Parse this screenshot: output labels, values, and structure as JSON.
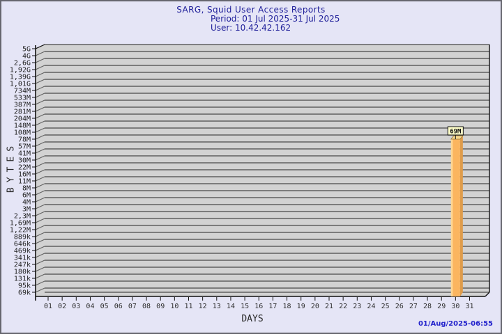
{
  "header": {
    "title": "SARG, Squid User Access Reports",
    "period": "Period: 01 Jul 2025-31 Jul 2025",
    "user": "User: 10.42.42.162"
  },
  "footer": {
    "timestamp": "01/Aug/2025-06:55"
  },
  "chart_data": {
    "type": "bar",
    "title": "SARG, Squid User Access Reports",
    "subtitle_period": "Period: 01 Jul 2025-31 Jul 2025",
    "subtitle_user": "User: 10.42.42.162",
    "xlabel": "DAYS",
    "ylabel": "BYTES",
    "x_tick_labels": [
      "01",
      "02",
      "03",
      "04",
      "05",
      "06",
      "07",
      "08",
      "09",
      "10",
      "11",
      "12",
      "13",
      "14",
      "15",
      "16",
      "17",
      "18",
      "19",
      "20",
      "21",
      "22",
      "23",
      "24",
      "25",
      "26",
      "27",
      "28",
      "29",
      "30",
      "31"
    ],
    "y_tick_labels": [
      "5G",
      "4G",
      "2,6G",
      "1,92G",
      "1,39G",
      "1,01G",
      "734M",
      "533M",
      "387M",
      "281M",
      "204M",
      "148M",
      "108M",
      "78M",
      "57M",
      "41M",
      "30M",
      "22M",
      "16M",
      "11M",
      "8M",
      "6M",
      "4M",
      "3M",
      "2,3M",
      "1,69M",
      "1,22M",
      "889k",
      "646k",
      "469k",
      "341k",
      "247k",
      "180k",
      "131k",
      "95k",
      "69k"
    ],
    "y_scale": "nonlinear byte scale from 69k (bottom) to 5G (top)",
    "grid": "horizontal gridline at every y tick",
    "legend": null,
    "bars": [
      {
        "x": "30",
        "value_label": "69M"
      }
    ],
    "days_without_bars": "all days except 30 show no bar (zero / no traffic)",
    "timestamp": "01/Aug/2025-06:55"
  },
  "colors": {
    "page_bg": "#E5E5F6",
    "frame_border": "#66666E",
    "plot_bg": "#D2D2D2",
    "gridline": "#606060",
    "axis": "#111111",
    "title_text": "#20209A",
    "tick_text": "#1f1f1f",
    "bar_front": "#FBB55F",
    "bar_side": "#DF9C4B",
    "bar_top": "#F7D98F",
    "bar_highlight": "#FFD794",
    "annotation_bg": "#FFFFC9",
    "annotation_border": "#111111",
    "timestamp_text": "#2323CC"
  }
}
